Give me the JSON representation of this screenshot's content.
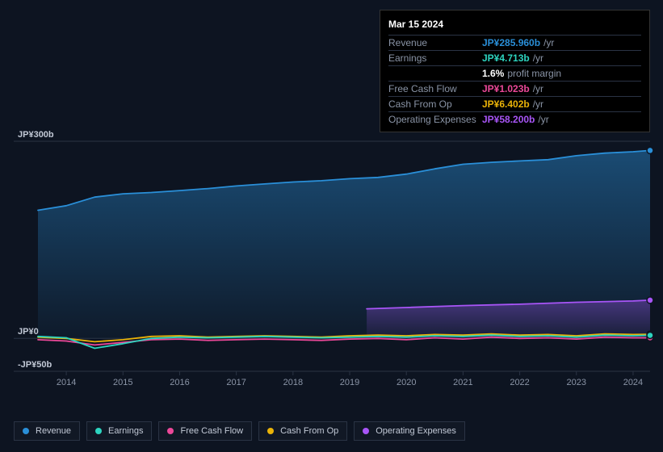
{
  "tooltip": {
    "date": "Mar 15 2024",
    "rows": [
      {
        "label": "Revenue",
        "value": "JP¥285.960b",
        "suffix": "/yr",
        "color": "#2a8fd8"
      },
      {
        "label": "Earnings",
        "value": "JP¥4.713b",
        "suffix": "/yr",
        "color": "#2dd4bf"
      },
      {
        "label": "",
        "value": "1.6%",
        "suffix": "profit margin",
        "color": "#ffffff"
      },
      {
        "label": "Free Cash Flow",
        "value": "JP¥1.023b",
        "suffix": "/yr",
        "color": "#ec4899"
      },
      {
        "label": "Cash From Op",
        "value": "JP¥6.402b",
        "suffix": "/yr",
        "color": "#eab308"
      },
      {
        "label": "Operating Expenses",
        "value": "JP¥58.200b",
        "suffix": "/yr",
        "color": "#a855f7"
      }
    ]
  },
  "chart": {
    "type": "area-line",
    "background_color": "#0d1421",
    "grid_color": "#2a3344",
    "ylim": [
      -50,
      300
    ],
    "y_ticks": [
      {
        "v": 300,
        "label": "JP¥300b"
      },
      {
        "v": 0,
        "label": "JP¥0"
      },
      {
        "v": -50,
        "label": "-JP¥50b"
      }
    ],
    "xlim": [
      2013.5,
      2024.3
    ],
    "x_ticks": [
      2014,
      2015,
      2016,
      2017,
      2018,
      2019,
      2020,
      2021,
      2022,
      2023,
      2024
    ],
    "series": {
      "revenue": {
        "color": "#2a8fd8",
        "fill": true,
        "fill_opacity": 0.25,
        "data": [
          [
            2013.5,
            195
          ],
          [
            2014,
            202
          ],
          [
            2014.5,
            215
          ],
          [
            2015,
            220
          ],
          [
            2015.5,
            222
          ],
          [
            2016,
            225
          ],
          [
            2016.5,
            228
          ],
          [
            2017,
            232
          ],
          [
            2017.5,
            235
          ],
          [
            2018,
            238
          ],
          [
            2018.5,
            240
          ],
          [
            2019,
            243
          ],
          [
            2019.5,
            245
          ],
          [
            2020,
            250
          ],
          [
            2020.5,
            258
          ],
          [
            2021,
            265
          ],
          [
            2021.5,
            268
          ],
          [
            2022,
            270
          ],
          [
            2022.5,
            272
          ],
          [
            2023,
            278
          ],
          [
            2023.5,
            282
          ],
          [
            2024,
            284
          ],
          [
            2024.3,
            285.96
          ]
        ]
      },
      "operating_expenses": {
        "color": "#a855f7",
        "fill": true,
        "fill_opacity": 0.2,
        "start": 2019.3,
        "data": [
          [
            2019.3,
            45
          ],
          [
            2020,
            47
          ],
          [
            2021,
            50
          ],
          [
            2022,
            52
          ],
          [
            2023,
            55
          ],
          [
            2024,
            57
          ],
          [
            2024.3,
            58.2
          ]
        ]
      },
      "cash_from_op": {
        "color": "#eab308",
        "fill": false,
        "data": [
          [
            2013.5,
            2
          ],
          [
            2014,
            0
          ],
          [
            2014.5,
            -5
          ],
          [
            2015,
            -2
          ],
          [
            2015.5,
            3
          ],
          [
            2016,
            4
          ],
          [
            2016.5,
            2
          ],
          [
            2017,
            3
          ],
          [
            2017.5,
            4
          ],
          [
            2018,
            3
          ],
          [
            2018.5,
            2
          ],
          [
            2019,
            4
          ],
          [
            2019.5,
            5
          ],
          [
            2020,
            4
          ],
          [
            2020.5,
            6
          ],
          [
            2021,
            5
          ],
          [
            2021.5,
            7
          ],
          [
            2022,
            5
          ],
          [
            2022.5,
            6
          ],
          [
            2023,
            4
          ],
          [
            2023.5,
            7
          ],
          [
            2024,
            6
          ],
          [
            2024.3,
            6.402
          ]
        ]
      },
      "free_cash_flow": {
        "color": "#ec4899",
        "fill": false,
        "data": [
          [
            2013.5,
            -2
          ],
          [
            2014,
            -4
          ],
          [
            2014.5,
            -10
          ],
          [
            2015,
            -6
          ],
          [
            2015.5,
            -2
          ],
          [
            2016,
            -1
          ],
          [
            2016.5,
            -3
          ],
          [
            2017,
            -2
          ],
          [
            2017.5,
            -1
          ],
          [
            2018,
            -2
          ],
          [
            2018.5,
            -3
          ],
          [
            2019,
            -1
          ],
          [
            2019.5,
            0
          ],
          [
            2020,
            -2
          ],
          [
            2020.5,
            1
          ],
          [
            2021,
            -1
          ],
          [
            2021.5,
            2
          ],
          [
            2022,
            0
          ],
          [
            2022.5,
            1
          ],
          [
            2023,
            -1
          ],
          [
            2023.5,
            2
          ],
          [
            2024,
            1
          ],
          [
            2024.3,
            1.023
          ]
        ]
      },
      "earnings": {
        "color": "#2dd4bf",
        "fill": false,
        "data": [
          [
            2013.5,
            3
          ],
          [
            2014,
            1
          ],
          [
            2014.5,
            -15
          ],
          [
            2015,
            -8
          ],
          [
            2015.5,
            0
          ],
          [
            2016,
            2
          ],
          [
            2016.5,
            1
          ],
          [
            2017,
            2
          ],
          [
            2017.5,
            3
          ],
          [
            2018,
            2
          ],
          [
            2018.5,
            1
          ],
          [
            2019,
            2
          ],
          [
            2019.5,
            3
          ],
          [
            2020,
            2
          ],
          [
            2020.5,
            4
          ],
          [
            2021,
            3
          ],
          [
            2021.5,
            5
          ],
          [
            2022,
            3
          ],
          [
            2022.5,
            4
          ],
          [
            2023,
            2
          ],
          [
            2023.5,
            5
          ],
          [
            2024,
            4
          ],
          [
            2024.3,
            4.713
          ]
        ]
      }
    },
    "end_points": [
      {
        "series": "revenue",
        "x": 2024.3,
        "y": 285.96
      },
      {
        "series": "operating_expenses",
        "x": 2024.3,
        "y": 58.2
      },
      {
        "series": "cash_from_op",
        "x": 2024.3,
        "y": 6.402
      },
      {
        "series": "free_cash_flow",
        "x": 2024.3,
        "y": 1.023
      },
      {
        "series": "earnings",
        "x": 2024.3,
        "y": 4.713
      }
    ]
  },
  "legend": [
    {
      "label": "Revenue",
      "color": "#2a8fd8"
    },
    {
      "label": "Earnings",
      "color": "#2dd4bf"
    },
    {
      "label": "Free Cash Flow",
      "color": "#ec4899"
    },
    {
      "label": "Cash From Op",
      "color": "#eab308"
    },
    {
      "label": "Operating Expenses",
      "color": "#a855f7"
    }
  ]
}
